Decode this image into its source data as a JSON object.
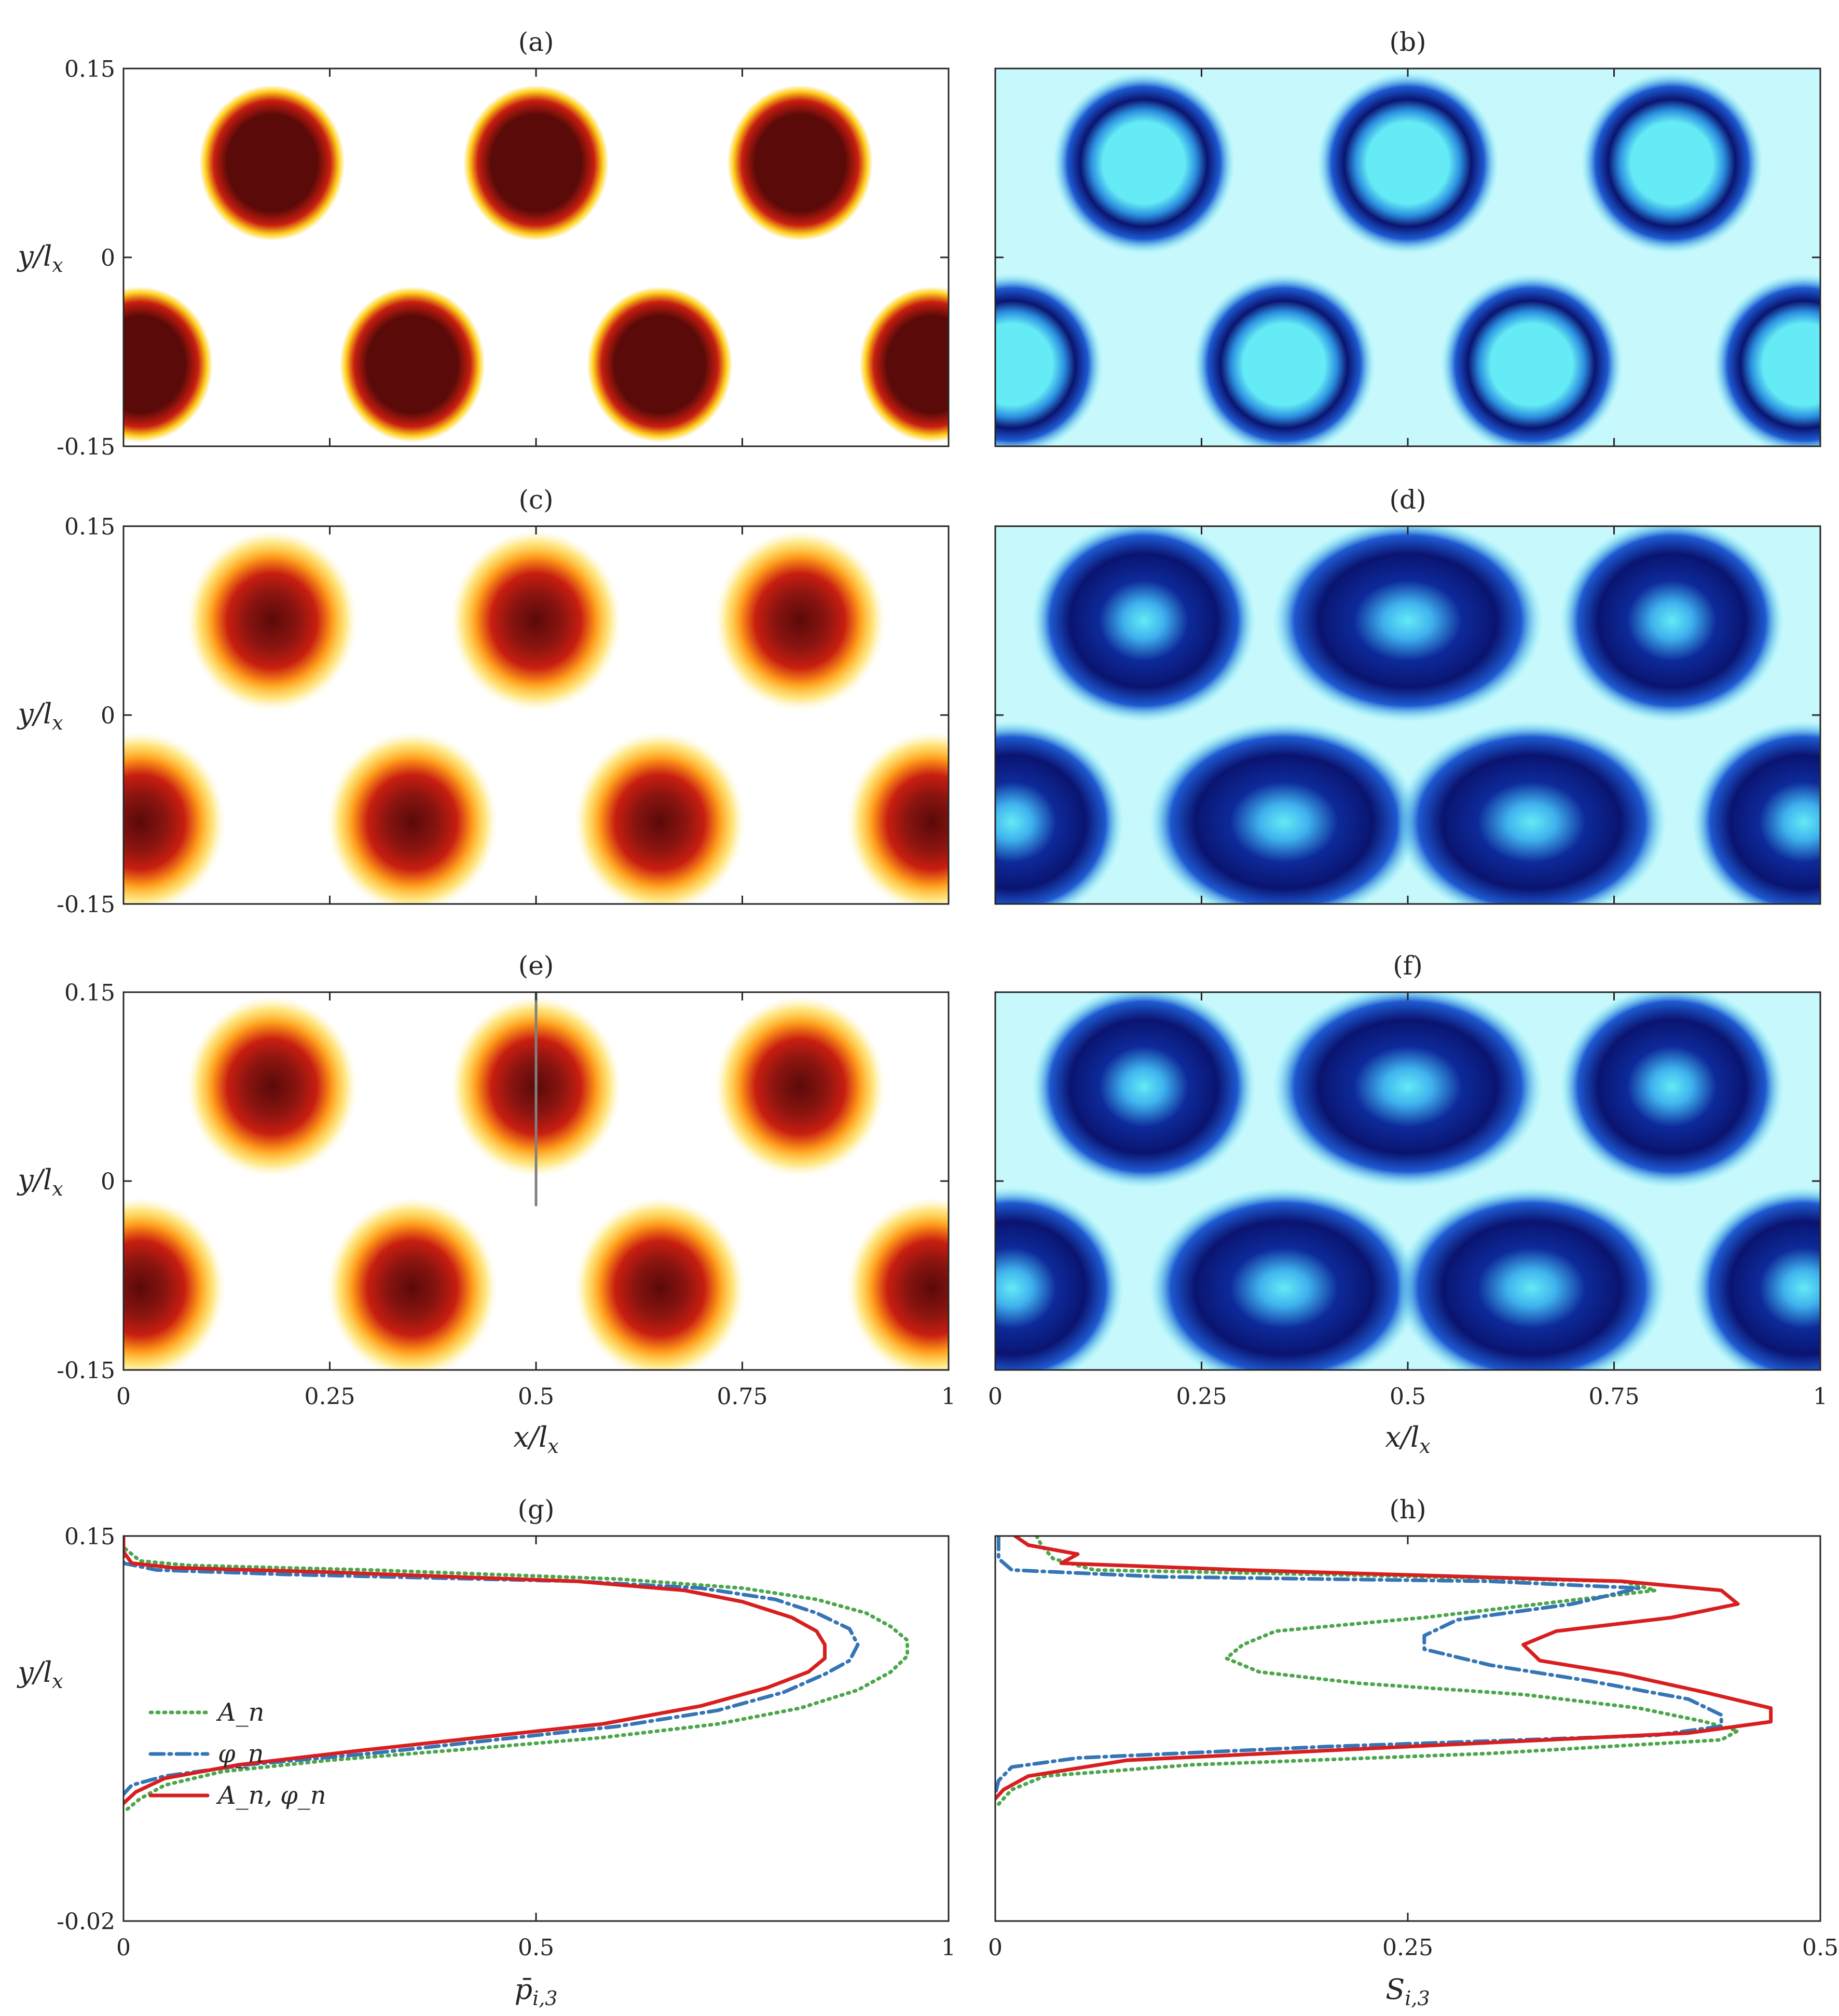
{
  "figure": {
    "map_panels": [
      {
        "id": "a",
        "title": "(a)",
        "colormap": "hot",
        "column": 0,
        "row": 0,
        "style": "sharp"
      },
      {
        "id": "b",
        "title": "(b)",
        "colormap": "blue",
        "column": 1,
        "row": 0,
        "style": "sharp"
      },
      {
        "id": "c",
        "title": "(c)",
        "colormap": "hot",
        "column": 0,
        "row": 1,
        "style": "soft"
      },
      {
        "id": "d",
        "title": "(d)",
        "colormap": "blue",
        "column": 1,
        "row": 1,
        "style": "soft"
      },
      {
        "id": "e",
        "title": "(e)",
        "colormap": "hot",
        "column": 0,
        "row": 2,
        "style": "soft",
        "marker_line": {
          "x": 0.5,
          "y_from": 0.15,
          "y_to": -0.02
        }
      },
      {
        "id": "f",
        "title": "(f)",
        "colormap": "blue",
        "column": 1,
        "row": 2,
        "style": "soft"
      }
    ],
    "map_axes": {
      "x_ticks": [
        "0",
        "0.25",
        "0.5",
        "0.75",
        "1"
      ],
      "y_ticks": [
        "0.15",
        "0",
        "-0.15"
      ],
      "xlabel_main": "x/l",
      "xlabel_sub": "x",
      "ylabel_main": "y/l",
      "ylabel_sub": "x",
      "xlim": [
        0,
        1
      ],
      "ylim": [
        -0.15,
        0.15
      ]
    },
    "colors": {
      "hot_dark": "#5a0a08",
      "hot_mid": "#c81e10",
      "hot_light": "#ffd21e",
      "blue_dark": "#0a1470",
      "blue_mid": "#1e5ad2",
      "blue_light": "#64ebf5",
      "series_An": "#4ca64c",
      "series_phi": "#3575b5",
      "series_both": "#d81e1e"
    }
  },
  "chart_data": [
    {
      "type": "line",
      "panel": "g",
      "title": "(g)",
      "xlabel": "p̄_{i,3}",
      "ylabel": "y/l_x",
      "xlim": [
        0,
        1
      ],
      "ylim": [
        -0.02,
        0.15
      ],
      "x_ticks": [
        "0",
        "0.5",
        "1"
      ],
      "y_ticks": [
        "0.15",
        "-0.02"
      ],
      "legend": {
        "placement": "left-middle",
        "entries": [
          "A_n",
          "φ_n",
          "A_n, φ_n"
        ]
      },
      "series": [
        {
          "name": "A_n",
          "style": "dotted",
          "color": "#4ca64c",
          "points": [
            [
              0.0,
              0.15
            ],
            [
              0.0,
              0.145
            ],
            [
              0.02,
              0.139
            ],
            [
              0.08,
              0.137
            ],
            [
              0.3,
              0.135
            ],
            [
              0.6,
              0.131
            ],
            [
              0.75,
              0.127
            ],
            [
              0.84,
              0.122
            ],
            [
              0.9,
              0.116
            ],
            [
              0.93,
              0.11
            ],
            [
              0.95,
              0.104
            ],
            [
              0.95,
              0.097
            ],
            [
              0.93,
              0.09
            ],
            [
              0.89,
              0.082
            ],
            [
              0.82,
              0.074
            ],
            [
              0.72,
              0.067
            ],
            [
              0.58,
              0.061
            ],
            [
              0.42,
              0.056
            ],
            [
              0.25,
              0.051
            ],
            [
              0.12,
              0.046
            ],
            [
              0.05,
              0.04
            ],
            [
              0.02,
              0.034
            ],
            [
              0.0,
              0.028
            ]
          ]
        },
        {
          "name": "φ_n",
          "style": "dashdot",
          "color": "#3575b5",
          "points": [
            [
              0.0,
              0.15
            ],
            [
              0.0,
              0.142
            ],
            [
              0.0,
              0.138
            ],
            [
              0.04,
              0.135
            ],
            [
              0.2,
              0.133
            ],
            [
              0.55,
              0.13
            ],
            [
              0.7,
              0.127
            ],
            [
              0.79,
              0.122
            ],
            [
              0.84,
              0.116
            ],
            [
              0.88,
              0.109
            ],
            [
              0.89,
              0.102
            ],
            [
              0.88,
              0.095
            ],
            [
              0.85,
              0.089
            ],
            [
              0.8,
              0.081
            ],
            [
              0.72,
              0.073
            ],
            [
              0.6,
              0.066
            ],
            [
              0.45,
              0.06
            ],
            [
              0.3,
              0.054
            ],
            [
              0.15,
              0.049
            ],
            [
              0.05,
              0.044
            ],
            [
              0.01,
              0.04
            ],
            [
              0.0,
              0.036
            ]
          ]
        },
        {
          "name": "A_n, φ_n",
          "style": "solid",
          "color": "#d81e1e",
          "points": [
            [
              0.0,
              0.15
            ],
            [
              0.0,
              0.143
            ],
            [
              0.01,
              0.138
            ],
            [
              0.06,
              0.136
            ],
            [
              0.25,
              0.134
            ],
            [
              0.55,
              0.13
            ],
            [
              0.68,
              0.126
            ],
            [
              0.75,
              0.121
            ],
            [
              0.81,
              0.114
            ],
            [
              0.84,
              0.108
            ],
            [
              0.85,
              0.102
            ],
            [
              0.85,
              0.096
            ],
            [
              0.83,
              0.09
            ],
            [
              0.78,
              0.083
            ],
            [
              0.7,
              0.075
            ],
            [
              0.58,
              0.067
            ],
            [
              0.43,
              0.061
            ],
            [
              0.28,
              0.055
            ],
            [
              0.14,
              0.049
            ],
            [
              0.05,
              0.043
            ],
            [
              0.015,
              0.037
            ],
            [
              0.0,
              0.032
            ]
          ]
        }
      ]
    },
    {
      "type": "line",
      "panel": "h",
      "title": "(h)",
      "xlabel": "S_{i,3}",
      "ylabel": "",
      "xlim": [
        0,
        0.5
      ],
      "ylim": [
        -0.02,
        0.15
      ],
      "x_ticks": [
        "0",
        "0.25",
        "0.5"
      ],
      "y_ticks": [],
      "series": [
        {
          "name": "A_n",
          "style": "dotted",
          "color": "#4ca64c",
          "points": [
            [
              0.025,
              0.15
            ],
            [
              0.028,
              0.146
            ],
            [
              0.035,
              0.14
            ],
            [
              0.06,
              0.135
            ],
            [
              0.2,
              0.133
            ],
            [
              0.38,
              0.13
            ],
            [
              0.4,
              0.126
            ],
            [
              0.33,
              0.12
            ],
            [
              0.26,
              0.114
            ],
            [
              0.17,
              0.108
            ],
            [
              0.15,
              0.102
            ],
            [
              0.14,
              0.096
            ],
            [
              0.16,
              0.09
            ],
            [
              0.22,
              0.085
            ],
            [
              0.32,
              0.08
            ],
            [
              0.39,
              0.074
            ],
            [
              0.43,
              0.068
            ],
            [
              0.45,
              0.064
            ],
            [
              0.44,
              0.06
            ],
            [
              0.3,
              0.054
            ],
            [
              0.12,
              0.049
            ],
            [
              0.03,
              0.044
            ],
            [
              0.01,
              0.038
            ],
            [
              0.0,
              0.03
            ]
          ]
        },
        {
          "name": "φ_n",
          "style": "dashdot",
          "color": "#3575b5",
          "points": [
            [
              0.002,
              0.15
            ],
            [
              0.002,
              0.14
            ],
            [
              0.01,
              0.135
            ],
            [
              0.1,
              0.132
            ],
            [
              0.3,
              0.13
            ],
            [
              0.39,
              0.127
            ],
            [
              0.35,
              0.12
            ],
            [
              0.28,
              0.113
            ],
            [
              0.26,
              0.106
            ],
            [
              0.26,
              0.1
            ],
            [
              0.3,
              0.093
            ],
            [
              0.36,
              0.086
            ],
            [
              0.42,
              0.078
            ],
            [
              0.44,
              0.071
            ],
            [
              0.44,
              0.066
            ],
            [
              0.4,
              0.062
            ],
            [
              0.2,
              0.057
            ],
            [
              0.05,
              0.052
            ],
            [
              0.01,
              0.048
            ],
            [
              0.002,
              0.042
            ],
            [
              0.0,
              0.036
            ]
          ]
        },
        {
          "name": "A_n, φ_n",
          "style": "solid",
          "color": "#d81e1e",
          "points": [
            [
              0.012,
              0.15
            ],
            [
              0.02,
              0.146
            ],
            [
              0.05,
              0.142
            ],
            [
              0.04,
              0.138
            ],
            [
              0.15,
              0.135
            ],
            [
              0.38,
              0.13
            ],
            [
              0.44,
              0.126
            ],
            [
              0.45,
              0.12
            ],
            [
              0.41,
              0.114
            ],
            [
              0.34,
              0.108
            ],
            [
              0.32,
              0.102
            ],
            [
              0.33,
              0.095
            ],
            [
              0.38,
              0.089
            ],
            [
              0.43,
              0.081
            ],
            [
              0.47,
              0.074
            ],
            [
              0.47,
              0.068
            ],
            [
              0.42,
              0.063
            ],
            [
              0.25,
              0.057
            ],
            [
              0.08,
              0.051
            ],
            [
              0.02,
              0.044
            ],
            [
              0.005,
              0.038
            ],
            [
              0.0,
              0.034
            ]
          ]
        }
      ]
    }
  ]
}
